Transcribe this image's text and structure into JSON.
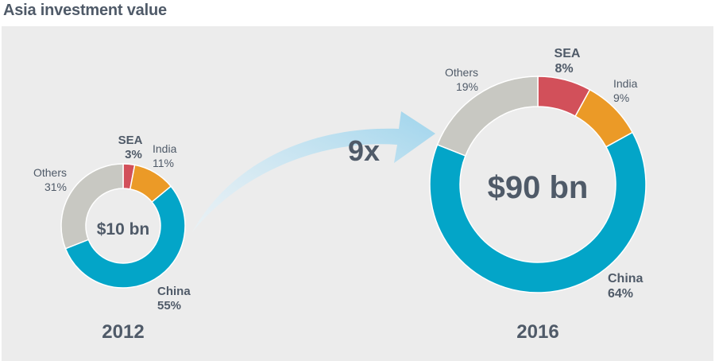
{
  "title": "Asia investment value",
  "multiplier_label": "9x",
  "colors": {
    "SEA": "#d2505a",
    "India": "#eb9a27",
    "China": "#03a5c8",
    "Others": "#c8c8c2",
    "text": "#4f5a68",
    "arrow": "#a9d9ee",
    "panel": "#ececec"
  },
  "chart_data": [
    {
      "type": "pie",
      "style": "donut",
      "year": "2012",
      "total_label": "$10 bn",
      "slices": [
        {
          "name": "SEA",
          "value": 3,
          "value_label": "3%"
        },
        {
          "name": "India",
          "value": 11,
          "value_label": "11%"
        },
        {
          "name": "China",
          "value": 55,
          "value_label": "55%"
        },
        {
          "name": "Others",
          "value": 31,
          "value_label": "31%"
        }
      ]
    },
    {
      "type": "pie",
      "style": "donut",
      "year": "2016",
      "total_label": "$90 bn",
      "slices": [
        {
          "name": "SEA",
          "value": 8,
          "value_label": "8%"
        },
        {
          "name": "India",
          "value": 9,
          "value_label": "9%"
        },
        {
          "name": "China",
          "value": 64,
          "value_label": "64%"
        },
        {
          "name": "Others",
          "value": 19,
          "value_label": "19%"
        }
      ]
    }
  ]
}
